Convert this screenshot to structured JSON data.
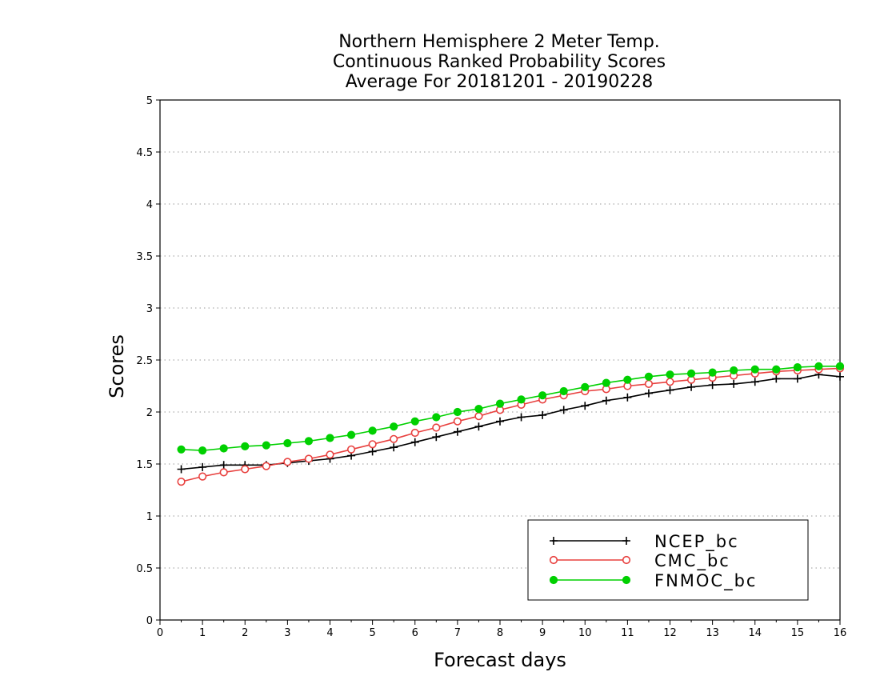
{
  "chart_data": {
    "type": "line",
    "title": [
      "Northern Hemisphere 2 Meter Temp.",
      "Continuous Ranked Probability Scores",
      "Average For 20181201 - 20190228"
    ],
    "xlabel": "Forecast days",
    "ylabel": "Scores",
    "xlim": [
      0,
      16
    ],
    "ylim": [
      0,
      5
    ],
    "xticks": [
      "0",
      "1",
      "2",
      "3",
      "4",
      "5",
      "6",
      "7",
      "8",
      "9",
      "10",
      "11",
      "12",
      "13",
      "14",
      "15",
      "16"
    ],
    "yticks": [
      "0",
      "0.5",
      "1",
      "1.5",
      "2",
      "2.5",
      "3",
      "3.5",
      "4",
      "4.5",
      "5"
    ],
    "grid": "horizontal dotted",
    "legend_position": "bottom-right",
    "x": [
      0.5,
      1,
      1.5,
      2,
      2.5,
      3,
      3.5,
      4,
      4.5,
      5,
      5.5,
      6,
      6.5,
      7,
      7.5,
      8,
      8.5,
      9,
      9.5,
      10,
      10.5,
      11,
      11.5,
      12,
      12.5,
      13,
      13.5,
      14,
      14.5,
      15,
      15.5,
      16
    ],
    "series": [
      {
        "name": "NCEP_bc",
        "color": "#000000",
        "marker": "plus",
        "values": [
          1.45,
          1.47,
          1.49,
          1.49,
          1.49,
          1.51,
          1.53,
          1.55,
          1.58,
          1.62,
          1.66,
          1.71,
          1.76,
          1.81,
          1.86,
          1.91,
          1.95,
          1.97,
          2.02,
          2.06,
          2.11,
          2.14,
          2.18,
          2.21,
          2.24,
          2.26,
          2.27,
          2.29,
          2.32,
          2.32,
          2.36,
          2.34
        ]
      },
      {
        "name": "CMC_bc",
        "color": "#e8413f",
        "marker": "open-circle",
        "values": [
          1.33,
          1.38,
          1.42,
          1.45,
          1.48,
          1.52,
          1.55,
          1.59,
          1.64,
          1.69,
          1.74,
          1.8,
          1.85,
          1.91,
          1.96,
          2.02,
          2.07,
          2.12,
          2.16,
          2.2,
          2.22,
          2.25,
          2.27,
          2.29,
          2.31,
          2.33,
          2.35,
          2.37,
          2.39,
          2.4,
          2.41,
          2.42
        ]
      },
      {
        "name": "FNMOC_bc",
        "color": "#00d000",
        "marker": "filled-circle",
        "values": [
          1.64,
          1.63,
          1.65,
          1.67,
          1.68,
          1.7,
          1.72,
          1.75,
          1.78,
          1.82,
          1.86,
          1.91,
          1.95,
          2.0,
          2.03,
          2.08,
          2.12,
          2.16,
          2.2,
          2.24,
          2.28,
          2.31,
          2.34,
          2.36,
          2.37,
          2.38,
          2.4,
          2.41,
          2.41,
          2.43,
          2.44,
          2.44
        ]
      }
    ]
  }
}
